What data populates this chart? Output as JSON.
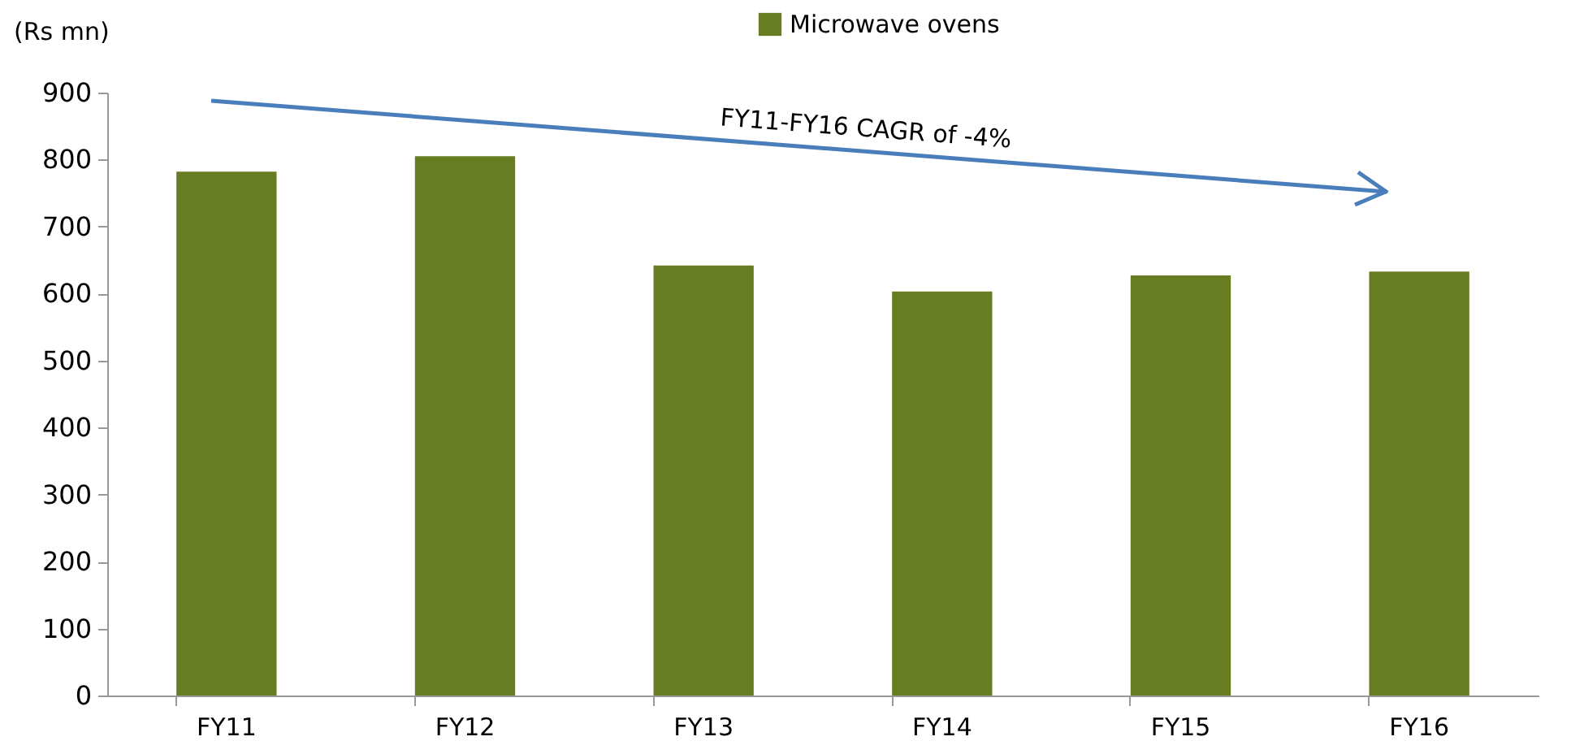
{
  "chart_data": {
    "type": "bar",
    "ylabel": "(Rs mn)",
    "categories": [
      "FY11",
      "FY12",
      "FY13",
      "FY14",
      "FY15",
      "FY16"
    ],
    "series": [
      {
        "name": "Microwave ovens",
        "color": "#687d21",
        "values": [
          782,
          805,
          642,
          603,
          627,
          633
        ]
      }
    ],
    "ylim": [
      0,
      900
    ],
    "yticks": [
      0,
      100,
      200,
      300,
      400,
      500,
      600,
      700,
      800,
      900
    ],
    "grid": false,
    "legend": "top",
    "annotations": [
      "FY11-FY16 CAGR of -4%"
    ]
  }
}
